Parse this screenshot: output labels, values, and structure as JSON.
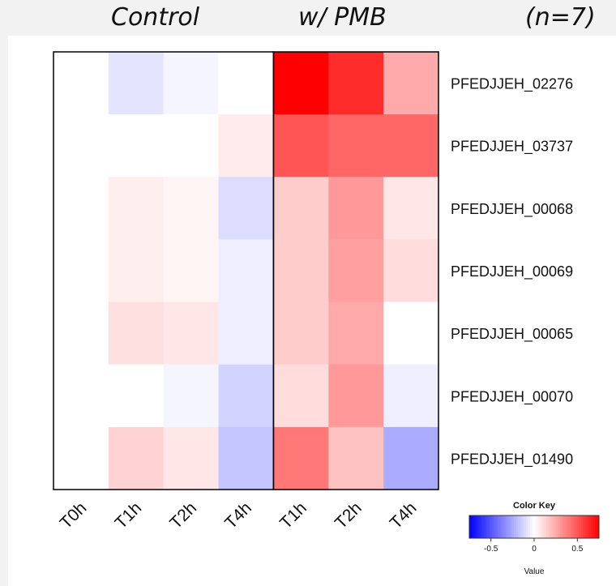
{
  "titles": {
    "control": "Control",
    "pmb": "w/ PMB",
    "n": "(n=7)"
  },
  "chart_data": {
    "type": "heatmap",
    "columns": [
      "T0h",
      "T1h",
      "T2h",
      "T4h",
      "T1h",
      "T2h",
      "T4h"
    ],
    "column_groups": [
      {
        "name": "Control",
        "columns": [
          0,
          1,
          2,
          3
        ]
      },
      {
        "name": "w/ PMB",
        "columns": [
          4,
          5,
          6
        ]
      }
    ],
    "rows": [
      "PFEDJJEH_02276",
      "PFEDJJEH_03737",
      "PFEDJJEH_00068",
      "PFEDJJEH_00069",
      "PFEDJJEH_00065",
      "PFEDJJEH_00070",
      "PFEDJJEH_01490"
    ],
    "values": [
      [
        0.0,
        -0.08,
        -0.03,
        0.0,
        0.75,
        0.62,
        0.25
      ],
      [
        0.0,
        0.0,
        0.0,
        0.06,
        0.5,
        0.45,
        0.45
      ],
      [
        0.0,
        0.05,
        0.03,
        -0.1,
        0.15,
        0.3,
        0.07
      ],
      [
        0.0,
        0.05,
        0.03,
        -0.05,
        0.15,
        0.28,
        0.1
      ],
      [
        0.0,
        0.09,
        0.07,
        -0.05,
        0.15,
        0.25,
        0.0
      ],
      [
        0.0,
        0.0,
        -0.03,
        -0.13,
        0.1,
        0.3,
        -0.05
      ],
      [
        0.0,
        0.13,
        0.07,
        -0.17,
        0.4,
        0.18,
        -0.25
      ]
    ],
    "color_key": {
      "title": "Color Key",
      "xlabel": "Value",
      "range": [
        -0.75,
        0.75
      ],
      "ticks": [
        "-0.5",
        "0",
        "0.5"
      ],
      "low_color": "#0000ff",
      "mid_color": "#ffffff",
      "high_color": "#ff0000"
    }
  }
}
